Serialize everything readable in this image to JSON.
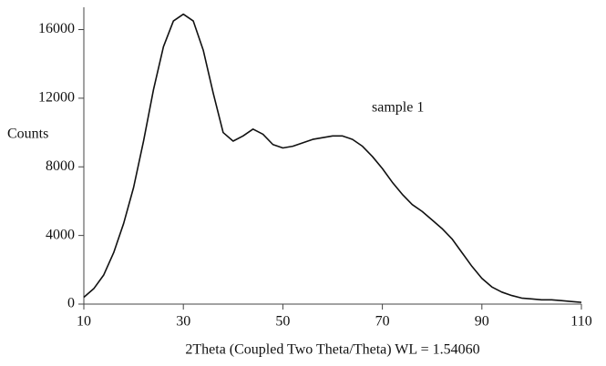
{
  "chart_data": {
    "type": "line",
    "xlabel": "2Theta (Coupled Two Theta/Theta) WL = 1.54060",
    "ylabel": "Counts",
    "x": [
      10,
      12,
      14,
      16,
      18,
      20,
      22,
      24,
      26,
      28,
      30,
      32,
      34,
      36,
      38,
      40,
      42,
      44,
      46,
      48,
      50,
      52,
      54,
      56,
      58,
      60,
      62,
      64,
      66,
      68,
      70,
      72,
      74,
      76,
      78,
      80,
      82,
      84,
      86,
      88,
      90,
      92,
      94,
      96,
      98,
      100,
      102,
      104,
      106,
      108,
      110
    ],
    "series": [
      {
        "name": "sample 1",
        "color": "#111111",
        "values": [
          400,
          900,
          1700,
          3000,
          4700,
          6800,
          9500,
          12500,
          15000,
          16500,
          16900,
          16500,
          14800,
          12300,
          10000,
          9500,
          9800,
          10200,
          9900,
          9300,
          9100,
          9200,
          9400,
          9600,
          9700,
          9800,
          9800,
          9600,
          9200,
          8600,
          7900,
          7100,
          6400,
          5800,
          5400,
          4900,
          4400,
          3800,
          3000,
          2200,
          1500,
          1000,
          700,
          500,
          350,
          300,
          250,
          250,
          200,
          150,
          100
        ]
      }
    ],
    "xlim": [
      10,
      110
    ],
    "xticks": [
      10,
      30,
      50,
      70,
      90,
      110
    ],
    "ylim": [
      0,
      17300
    ],
    "yticks": [
      0,
      4000,
      8000,
      12000,
      16000
    ],
    "grid": false
  }
}
